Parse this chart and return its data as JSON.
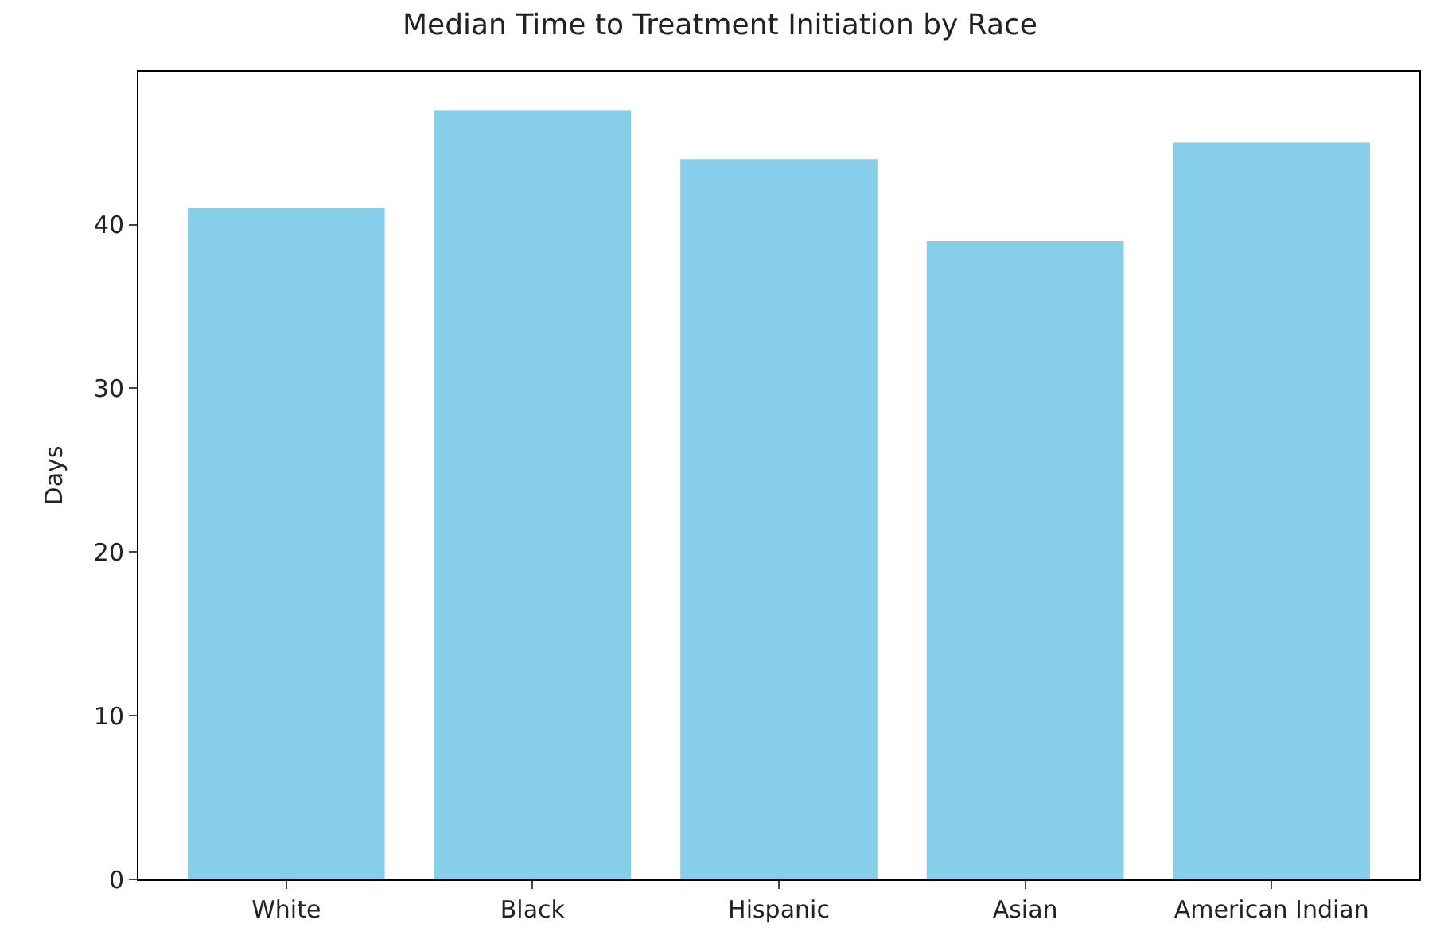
{
  "chart_data": {
    "type": "bar",
    "title": "Median Time to Treatment Initiation by Race",
    "ylabel": "Days",
    "categories": [
      "White",
      "Black",
      "Hispanic",
      "Asian",
      "American Indian"
    ],
    "values": [
      41,
      47,
      44,
      39,
      45
    ],
    "color": "#87ceeb",
    "ylim": [
      0,
      49.35
    ],
    "yticks": [
      0,
      10,
      20,
      30,
      40
    ]
  }
}
